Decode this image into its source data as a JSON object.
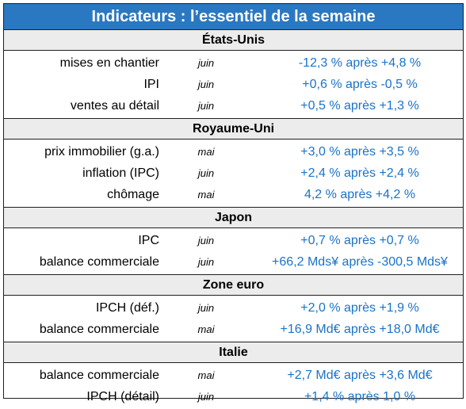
{
  "title": "Indicateurs : l’essentiel de la semaine",
  "colors": {
    "title_bg": "#2a78c2",
    "value_text": "#1a73c8",
    "header_bg": "#ececec"
  },
  "sections": [
    {
      "name": "États-Unis",
      "rows": [
        {
          "label": "mises en chantier",
          "month": "juin",
          "value": "-12,3 % après +4,8 %"
        },
        {
          "label": "IPI",
          "month": "juin",
          "value": "+0,6 % après -0,5 %"
        },
        {
          "label": "ventes au détail",
          "month": "juin",
          "value": "+0,5 % après +1,3 %"
        }
      ]
    },
    {
      "name": "Royaume-Uni",
      "rows": [
        {
          "label": "prix immobilier (g.a.)",
          "month": "mai",
          "value": "+3,0 % après +3,5 %"
        },
        {
          "label": "inflation (IPC)",
          "month": "juin",
          "value": "+2,4 % après +2,4 %"
        },
        {
          "label": "chômage",
          "month": "mai",
          "value": "4,2 % après +4,2 %"
        }
      ]
    },
    {
      "name": "Japon",
      "rows": [
        {
          "label": "IPC",
          "month": "juin",
          "value": "+0,7 % après +0,7 %"
        },
        {
          "label": "balance commerciale",
          "month": "juin",
          "value": "+66,2 Mds¥ après -300,5 Mds¥"
        }
      ]
    },
    {
      "name": "Zone euro",
      "rows": [
        {
          "label": "IPCH (déf.)",
          "month": "juin",
          "value": "+2,0 % après +1,9 %"
        },
        {
          "label": "balance commerciale",
          "month": "mai",
          "value": "+16,9 Md€ après +18,0 Md€"
        }
      ]
    },
    {
      "name": "Italie",
      "rows": [
        {
          "label": "balance commerciale",
          "month": "mai",
          "value": "+2,7 Md€ après +3,6 Md€"
        },
        {
          "label": "IPCH (détail)",
          "month": "juin",
          "value": "+1,4 % après 1,0 %"
        }
      ]
    }
  ]
}
